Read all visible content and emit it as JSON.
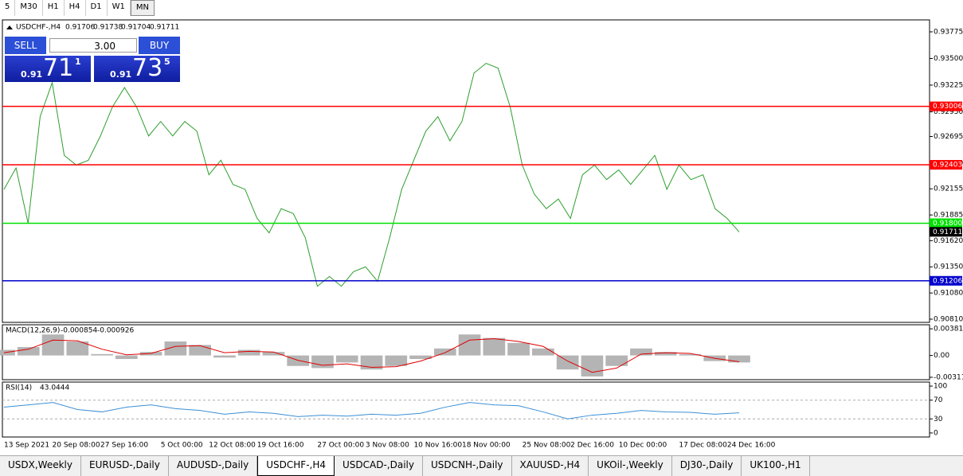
{
  "toolbar": {
    "timeframes": [
      "5",
      "M30",
      "H1",
      "H4",
      "D1",
      "W1",
      "MN"
    ]
  },
  "trade_panel": {
    "sell": "SELL",
    "lots": "3.00",
    "buy": "BUY",
    "bid": {
      "big": "0.91",
      "main": "71",
      "small": "1"
    },
    "ask": {
      "big": "0.91",
      "main": "73",
      "small": "5"
    }
  },
  "chart_data": [
    {
      "type": "line",
      "title": "USDCHF-,H4",
      "ohlc": [
        0.91706,
        0.91738,
        0.91704,
        0.91711
      ],
      "color": "#2e9e2e",
      "ylim": [
        0.90777,
        0.93898
      ],
      "yticks": [
        0.93775,
        {
          "value": 0.935,
          "label": "0.93500"
        },
        {
          "value": 0.93225,
          "label": "0.93225"
        },
        {
          "value": 0.9295,
          "label": "0.92950"
        },
        0.92695,
        {
          "value": 0.9242,
          "label": "0.92420"
        },
        0.92155,
        0.91885,
        {
          "value": 0.9162,
          "label": "0.91620"
        },
        {
          "value": 0.9135,
          "label": "0.91350"
        },
        {
          "value": 0.9108,
          "label": "0.91080"
        },
        {
          "value": 0.9081,
          "label": "0.90810"
        }
      ],
      "hlines": [
        {
          "value": 0.93006,
          "label": "0.93006",
          "color": "#ff0000"
        },
        {
          "value": 0.92403,
          "label": "0.92403",
          "color": "#ff0000"
        },
        {
          "value": 0.918,
          "label": "0.91800",
          "color": "#00e000"
        },
        {
          "value": 0.91206,
          "label": "0.91206",
          "color": "#0000cc"
        }
      ],
      "last": 0.91711,
      "categories": [
        "13 Sep 2021",
        null,
        null,
        null,
        "20 Sep 08:00",
        null,
        null,
        null,
        "27 Sep 16:00",
        null,
        null,
        null,
        null,
        "5 Oct 00:00",
        null,
        null,
        null,
        "12 Oct 08:00",
        null,
        null,
        null,
        "19 Oct 16:00",
        null,
        null,
        null,
        null,
        "27 Oct 00:00",
        null,
        null,
        null,
        "3 Nov 08:00",
        null,
        null,
        null,
        "10 Nov 16:00",
        null,
        null,
        null,
        "18 Nov 00:00",
        null,
        null,
        null,
        null,
        "25 Nov 08:00",
        null,
        null,
        null,
        "2 Dec 16:00",
        null,
        null,
        null,
        "10 Dec 00:00",
        null,
        null,
        null,
        null,
        "17 Dec 08:00",
        null,
        null,
        null,
        "24 Dec 16:00",
        null
      ],
      "values": [
        0.9215,
        0.9237,
        0.918,
        0.929,
        0.9325,
        0.925,
        0.924,
        0.9245,
        0.927,
        0.93,
        0.932,
        0.93,
        0.927,
        0.9285,
        0.927,
        0.9285,
        0.9275,
        0.923,
        0.9245,
        0.922,
        0.9215,
        0.9185,
        0.917,
        0.9195,
        0.919,
        0.9165,
        0.9115,
        0.9125,
        0.9115,
        0.913,
        0.9135,
        0.912,
        0.9165,
        0.9215,
        0.9245,
        0.9275,
        0.929,
        0.9265,
        0.9285,
        0.9335,
        0.9345,
        0.934,
        0.93,
        0.924,
        0.921,
        0.9195,
        0.9205,
        0.9185,
        0.923,
        0.924,
        0.9225,
        0.9235,
        0.922,
        0.9235,
        0.925,
        0.9215,
        0.924,
        0.9225,
        0.923,
        0.9195,
        0.9185,
        0.9171
      ]
    },
    {
      "type": "macd",
      "title": "MACD(12,26,9)",
      "readout": [
        -0.000854,
        -0.000926
      ],
      "ylim": [
        -0.00346,
        0.00439
      ],
      "yticks": [
        0.003811,
        {
          "value": 0,
          "label": "0.00"
        },
        -0.003115
      ],
      "series": [
        {
          "name": "MACD",
          "color": "#b4b4b4",
          "values": [
            0.0008,
            0.0012,
            0.003,
            0.002,
            0.0002,
            -0.0005,
            0.0005,
            0.002,
            0.0015,
            -0.0003,
            0.0008,
            0.0005,
            -0.0015,
            -0.0018,
            -0.001,
            -0.002,
            -0.0015,
            -0.0005,
            0.001,
            0.003,
            0.0025,
            0.0018,
            0.001,
            -0.002,
            -0.003,
            -0.0015,
            0.001,
            0.0005,
            0.0002,
            -0.0008,
            -0.001
          ]
        },
        {
          "name": "Signal",
          "color": "#e00000",
          "values": [
            0.0004,
            0.0009,
            0.0022,
            0.0021,
            0.0009,
            0.0001,
            0.0003,
            0.0013,
            0.0014,
            0.0004,
            0.0006,
            0.0005,
            -0.0007,
            -0.0014,
            -0.0012,
            -0.0017,
            -0.0016,
            -0.0008,
            0.0004,
            0.0022,
            0.0024,
            0.002,
            0.0013,
            -0.0008,
            -0.0024,
            -0.0018,
            0.0002,
            0.0004,
            0.0003,
            -0.0004,
            -0.0009
          ]
        }
      ]
    },
    {
      "type": "rsi",
      "title": "RSI(14)",
      "readout": 43.0444,
      "color": "#3b8fd6",
      "ylim": [
        -8.6,
        108.6
      ],
      "yticks": [
        100,
        70,
        30,
        0
      ],
      "levels": [
        70,
        30
      ],
      "values": [
        55,
        60,
        65,
        50,
        45,
        55,
        60,
        52,
        48,
        40,
        45,
        42,
        35,
        38,
        36,
        40,
        38,
        42,
        55,
        65,
        60,
        58,
        45,
        30,
        38,
        42,
        48,
        45,
        44,
        40,
        43
      ]
    }
  ],
  "tabs": [
    "USDX,Weekly",
    "EURUSD-,Daily",
    "AUDUSD-,Daily",
    "USDCHF-,H4",
    "USDCAD-,Daily",
    "USDCNH-,Daily",
    "XAUUSD-,H4",
    "UKOil-,Weekly",
    "DJ30-,Daily",
    "UK100-,H1"
  ]
}
